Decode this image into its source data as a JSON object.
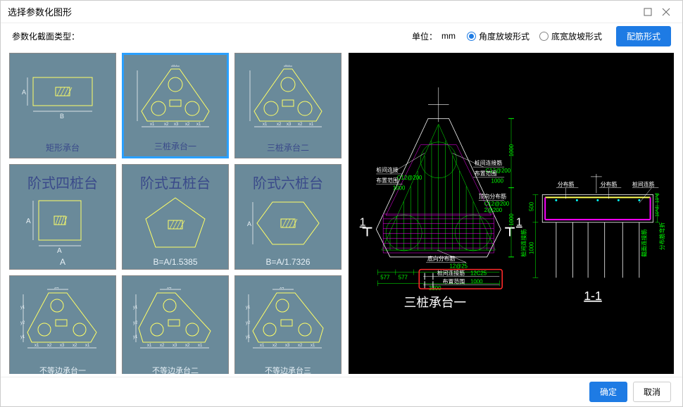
{
  "window": {
    "title": "选择参数化图形"
  },
  "toolbar": {
    "type_label": "参数化截面类型：",
    "unit_label": "单位：",
    "unit_value": "mm",
    "radio_angle": "角度放坡形式",
    "radio_width": "底宽放坡形式",
    "rebar_btn": "配筋形式"
  },
  "thumbs": [
    {
      "caption": "矩形承台",
      "kind": "rect",
      "caption_color": "blue"
    },
    {
      "caption": "三桩承台一",
      "kind": "tri3",
      "caption_color": "blue",
      "selected": true
    },
    {
      "caption": "三桩承台二",
      "kind": "tri3",
      "caption_color": "blue"
    },
    {
      "bigtext": "阶式四桩台",
      "kind": "square",
      "formula": "A",
      "dim_side": "A",
      "dim_bottom": "A"
    },
    {
      "bigtext": "阶式五桩台",
      "kind": "penta",
      "formula": "B=A/1.5385"
    },
    {
      "bigtext": "阶式六桩台",
      "kind": "hexa",
      "formula": "B=A/1.7326",
      "dim_side": "A"
    },
    {
      "caption": "不等边承台一",
      "kind": "trap5a",
      "caption_color": "white"
    },
    {
      "caption": "不等边承台二",
      "kind": "trap5b",
      "caption_color": "white"
    },
    {
      "caption": "不等边承台三",
      "kind": "trap5c",
      "caption_color": "white"
    }
  ],
  "preview": {
    "title_main": "三桩承台一",
    "title_section": "1-1",
    "legend_line1_a": "桩间连接筋",
    "legend_line1_b": "12C25",
    "legend_line2_a": "布置范围",
    "legend_line2_b": "1000",
    "lbl_top_left_a": "桩间连接",
    "lbl_top_left_b": "C12@200",
    "lbl_top_left_c": "布置范围",
    "lbl_top_left_d": "1000",
    "lbl_top_right_a": "桩间连接筋",
    "lbl_top_right_b": "C12@200",
    "lbl_top_right_c": "布置范围",
    "lbl_top_right_d": "1000",
    "lbl_mid_a": "顶向分布筋",
    "lbl_mid_b": "C12@200",
    "lbl_mid_c": "2@200",
    "lbl_bot_a": "底向分布筋",
    "lbl_bot_b": "12@25",
    "dim_tick": "577",
    "dim_bottom": "3300",
    "sec_label_left": "分布筋",
    "sec_label_right": "分布筋",
    "sec_label_far": "桩间连筋",
    "sec_vert_a": "桩间连接筋",
    "sec_vert_b": "截面连接筋",
    "sec_vert_c": "分布筋弯折",
    "sec_dim_v1": "500",
    "sec_dim_v2": "1000",
    "sec_dim_tiny": "10*d",
    "colors": {
      "green": "#00ff00",
      "magenta": "#ff00ff",
      "cyan": "#00ffff",
      "white": "#ffffff",
      "red": "#ff2a2a",
      "yellow": "#ffff55"
    }
  },
  "footer": {
    "ok": "确定",
    "cancel": "取消"
  }
}
